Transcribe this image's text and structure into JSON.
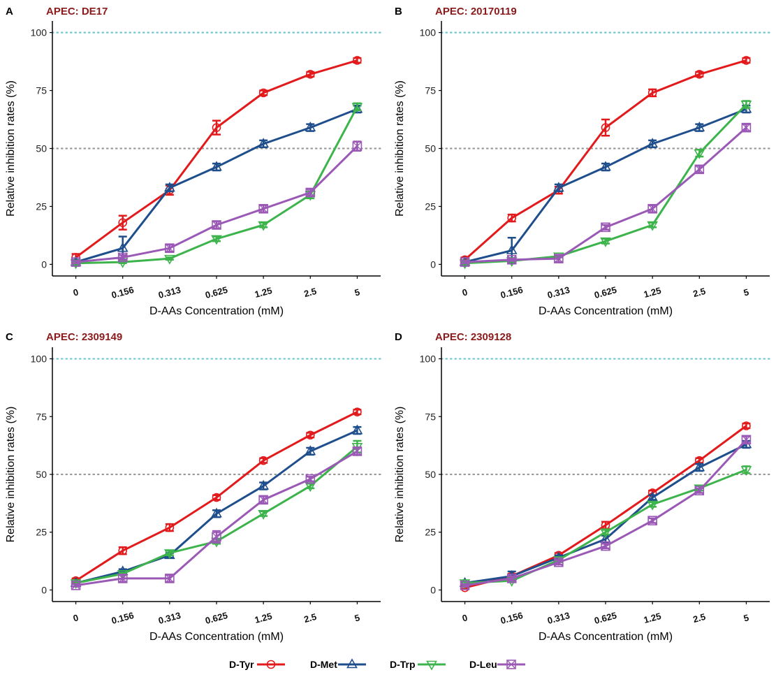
{
  "legend": {
    "items": [
      {
        "name": "D-Tyr",
        "color": "#e31a1c",
        "marker": "circle"
      },
      {
        "name": "D-Met",
        "color": "#1f4e8c",
        "marker": "triangle-up"
      },
      {
        "name": "D-Trp",
        "color": "#3cb44b",
        "marker": "triangle-down"
      },
      {
        "name": "D-Leu",
        "color": "#9b59b6",
        "marker": "square-x"
      }
    ]
  },
  "chart_data": [
    {
      "panel": "A",
      "type": "line",
      "title": "APEC: DE17",
      "xlabel": "D-AAs Concentration (mM)",
      "ylabel": "Relative inhibition rates (%)",
      "categories": [
        "0",
        "0.156",
        "0.313",
        "0.625",
        "1.25",
        "2.5",
        "5"
      ],
      "ylim": [
        -5,
        105
      ],
      "yticks": [
        0,
        25,
        50,
        75,
        100
      ],
      "reference_lines": [
        100,
        50
      ],
      "series": [
        {
          "name": "D-Tyr",
          "values": [
            3,
            18,
            32,
            59,
            74,
            82,
            88
          ],
          "errors": [
            1.5,
            3,
            2,
            3,
            1,
            1,
            1
          ]
        },
        {
          "name": "D-Met",
          "values": [
            1,
            7,
            33,
            42,
            52,
            59,
            67
          ],
          "errors": [
            1,
            5,
            1.5,
            1.5,
            1.5,
            1.5,
            1.5
          ]
        },
        {
          "name": "D-Trp",
          "values": [
            0.5,
            1,
            2.5,
            11,
            17,
            30,
            68
          ],
          "errors": [
            0.5,
            0.5,
            0.5,
            1,
            1,
            1.5,
            1.5
          ]
        },
        {
          "name": "D-Leu",
          "values": [
            1,
            3,
            7,
            17,
            24,
            31,
            51
          ],
          "errors": [
            0.5,
            1,
            1.5,
            1.5,
            1.5,
            1.5,
            2
          ]
        }
      ]
    },
    {
      "panel": "B",
      "type": "line",
      "title": "APEC: 20170119",
      "xlabel": "D-AAs Concentration (mM)",
      "ylabel": "Relative inhibition rates (%)",
      "categories": [
        "0",
        "0.156",
        "0.313",
        "0.625",
        "1.25",
        "2.5",
        "5"
      ],
      "ylim": [
        -5,
        105
      ],
      "yticks": [
        0,
        25,
        50,
        75,
        100
      ],
      "reference_lines": [
        100,
        50
      ],
      "series": [
        {
          "name": "D-Tyr",
          "values": [
            2,
            20,
            32,
            59,
            74,
            82,
            88
          ],
          "errors": [
            1,
            1.5,
            1.5,
            3.5,
            1.5,
            1,
            1
          ]
        },
        {
          "name": "D-Met",
          "values": [
            1,
            6,
            33,
            42,
            52,
            59,
            67
          ],
          "errors": [
            0.5,
            5.5,
            1.5,
            1.5,
            1.5,
            1.5,
            1.5
          ]
        },
        {
          "name": "D-Trp",
          "values": [
            0.5,
            1.5,
            3.5,
            10,
            17,
            48,
            69
          ],
          "errors": [
            0.5,
            0.5,
            0.5,
            1,
            1,
            1.5,
            1.5
          ]
        },
        {
          "name": "D-Leu",
          "values": [
            1,
            2,
            2.5,
            16,
            24,
            41,
            59
          ],
          "errors": [
            0.5,
            0.5,
            1.5,
            1,
            1.5,
            1.5,
            1.5
          ]
        }
      ]
    },
    {
      "panel": "C",
      "type": "line",
      "title": "APEC: 2309149",
      "xlabel": "D-AAs Concentration (mM)",
      "ylabel": "Relative inhibition rates (%)",
      "categories": [
        "0",
        "0.156",
        "0.313",
        "0.625",
        "1.25",
        "2.5",
        "5"
      ],
      "ylim": [
        -5,
        105
      ],
      "yticks": [
        0,
        25,
        50,
        75,
        100
      ],
      "reference_lines": [
        100,
        50
      ],
      "series": [
        {
          "name": "D-Tyr",
          "values": [
            4,
            17,
            27,
            40,
            56,
            67,
            77
          ],
          "errors": [
            1,
            1.5,
            1.5,
            1,
            1,
            1,
            1
          ]
        },
        {
          "name": "D-Met",
          "values": [
            3,
            8,
            15,
            33,
            45,
            60,
            69
          ],
          "errors": [
            0.5,
            1,
            1,
            1.5,
            1.5,
            1.5,
            1.5
          ]
        },
        {
          "name": "D-Trp",
          "values": [
            3,
            7,
            16,
            21,
            33,
            45,
            62
          ],
          "errors": [
            0.5,
            0.5,
            1,
            1,
            1,
            1,
            2.5
          ]
        },
        {
          "name": "D-Leu",
          "values": [
            2,
            5,
            5,
            23,
            39,
            48,
            60
          ],
          "errors": [
            0.5,
            1.5,
            1.5,
            2.5,
            1.5,
            1,
            1.5
          ]
        }
      ]
    },
    {
      "panel": "D",
      "type": "line",
      "title": "APEC: 2309128",
      "xlabel": "D-AAs Concentration (mM)",
      "ylabel": "Relative inhibition rates (%)",
      "categories": [
        "0",
        "0.156",
        "0.313",
        "0.625",
        "1.25",
        "2.5",
        "5"
      ],
      "ylim": [
        -5,
        105
      ],
      "yticks": [
        0,
        25,
        50,
        75,
        100
      ],
      "reference_lines": [
        100,
        50
      ],
      "series": [
        {
          "name": "D-Tyr",
          "values": [
            1,
            6,
            15,
            28,
            42,
            56,
            71
          ],
          "errors": [
            0.5,
            1,
            1,
            1.5,
            1,
            1,
            1
          ]
        },
        {
          "name": "D-Met",
          "values": [
            3,
            6,
            14,
            22,
            40,
            53,
            63
          ],
          "errors": [
            0.5,
            2,
            1,
            1.5,
            1,
            1.5,
            1.5
          ]
        },
        {
          "name": "D-Trp",
          "values": [
            3,
            4,
            13,
            25,
            37,
            44,
            52
          ],
          "errors": [
            0.5,
            0.5,
            1,
            1,
            1,
            1,
            1.5
          ]
        },
        {
          "name": "D-Leu",
          "values": [
            2,
            5,
            12,
            19,
            30,
            43,
            65
          ],
          "errors": [
            0.5,
            1,
            1,
            1,
            1,
            1,
            1.5
          ]
        }
      ]
    }
  ]
}
